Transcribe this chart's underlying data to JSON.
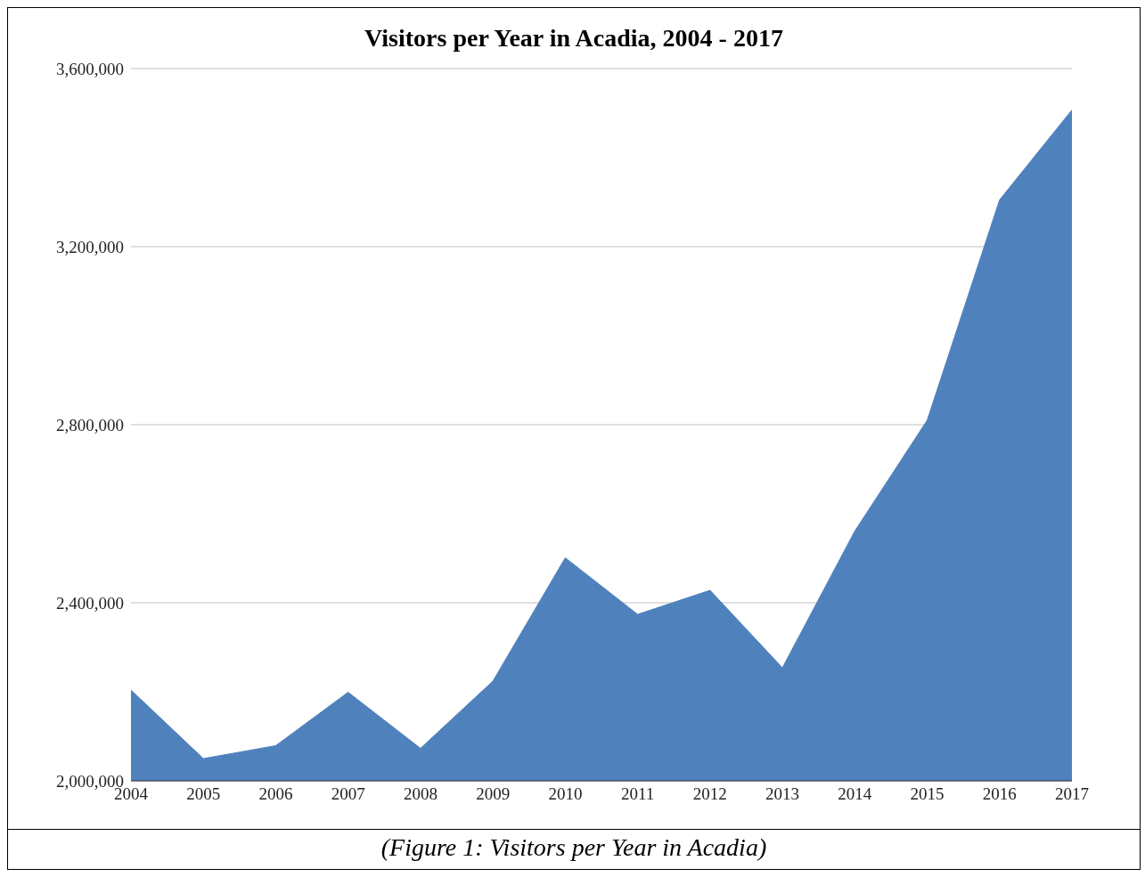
{
  "chart_data": {
    "type": "area",
    "title": "Visitors per Year in Acadia, 2004 - 2017",
    "categories": [
      "2004",
      "2005",
      "2006",
      "2007",
      "2008",
      "2009",
      "2010",
      "2011",
      "2012",
      "2013",
      "2014",
      "2015",
      "2016",
      "2017"
    ],
    "series": [
      {
        "color": "#4f81bd",
        "values": [
          2204000,
          2050000,
          2079000,
          2199000,
          2073000,
          2224000,
          2501000,
          2374000,
          2428000,
          2254000,
          2561000,
          2810000,
          3305000,
          3507000
        ]
      }
    ],
    "ylim": [
      2000000,
      3600000
    ],
    "yticks": [
      {
        "value": 2000000,
        "label": "2,000,000"
      },
      {
        "value": 2400000,
        "label": "2,400,000"
      },
      {
        "value": 2800000,
        "label": "2,800,000"
      },
      {
        "value": 3200000,
        "label": "3,200,000"
      },
      {
        "value": 3600000,
        "label": "3,600,000"
      }
    ],
    "grid": "y",
    "annotations": [
      "(Figure 1: Visitors per Year in Acadia)"
    ]
  }
}
